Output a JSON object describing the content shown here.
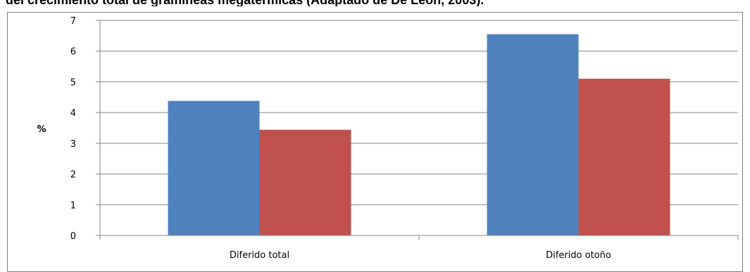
{
  "caption": "del crecimiento total de gramíneas megatérmicas (Adaptado de De León, 2003).",
  "colors": {
    "series1": "#4f81bd",
    "series2": "#c0504d",
    "grid": "#868686",
    "axis": "#868686"
  },
  "chart_data": {
    "type": "bar",
    "title": "",
    "xlabel": "",
    "ylabel": "%",
    "ylim": [
      0,
      7
    ],
    "yticks": [
      0,
      1,
      2,
      3,
      4,
      5,
      6,
      7
    ],
    "grid": true,
    "legend": "none",
    "categories": [
      "Diferido total",
      "Diferido otoño"
    ],
    "series": [
      {
        "values": [
          4.38,
          6.55
        ]
      },
      {
        "values": [
          3.44,
          5.1
        ]
      }
    ]
  }
}
